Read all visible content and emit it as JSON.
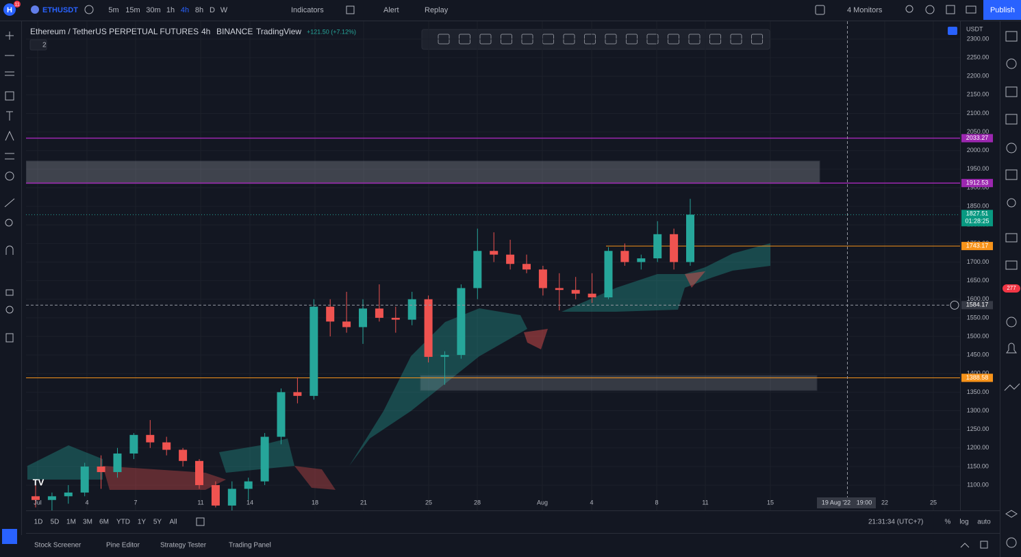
{
  "toolbar": {
    "badge": "11",
    "symbol": "ETHUSDT",
    "intervals": [
      "5m",
      "15m",
      "30m",
      "1h",
      "4h",
      "8h",
      "D",
      "W"
    ],
    "indicators": "Indicators",
    "alert": "Alert",
    "replay": "Replay",
    "monitors": "4 Monitors",
    "publish": "Publish"
  },
  "legend": {
    "symbol_name": "Ethereum / TetherUS PERPETUAL FUTURES",
    "interval": "4h",
    "exchange": "BINANCE",
    "source": "TradingView",
    "change": "+121.50 (+7.12%)",
    "collapsed": "2"
  },
  "currency": "USDT",
  "chart": {
    "ylim": [
      1078,
      2346
    ],
    "yticks": [
      {
        "value": 1100,
        "label": "1100.00"
      },
      {
        "value": 1150,
        "label": "1150.00"
      },
      {
        "value": 1200,
        "label": "1200.00"
      },
      {
        "value": 1250,
        "label": "1250.00"
      },
      {
        "value": 1300,
        "label": "1300.00"
      },
      {
        "value": 1350,
        "label": "1350.00"
      },
      {
        "value": 1400,
        "label": "1400.00"
      },
      {
        "value": 1450,
        "label": "1450.00"
      },
      {
        "value": 1500,
        "label": "1500.00"
      },
      {
        "value": 1550,
        "label": "1550.00"
      },
      {
        "value": 1600,
        "label": "1600.00"
      },
      {
        "value": 1650,
        "label": "1650.00"
      },
      {
        "value": 1700,
        "label": "1700.00"
      },
      {
        "value": 1750,
        "label": "1750.00"
      },
      {
        "value": 1800,
        "label": "1800.00"
      },
      {
        "value": 1850,
        "label": "1850.00"
      },
      {
        "value": 1900,
        "label": "1900.00"
      },
      {
        "value": 1950,
        "label": "1950.00"
      },
      {
        "value": 2000,
        "label": "2000.00"
      },
      {
        "value": 2050,
        "label": "2050.00"
      },
      {
        "value": 2100,
        "label": "2100.00"
      },
      {
        "value": 2150,
        "label": "2150.00"
      },
      {
        "value": 2200,
        "label": "2200.00"
      },
      {
        "value": 2250,
        "label": "2250.00"
      },
      {
        "value": 2300,
        "label": "2300.00"
      }
    ],
    "candles": [
      [
        1070,
        1110,
        1040,
        1060
      ],
      [
        1060,
        1080,
        1030,
        1070
      ],
      [
        1070,
        1100,
        1050,
        1080
      ],
      [
        1080,
        1160,
        1070,
        1150
      ],
      [
        1150,
        1180,
        1090,
        1135
      ],
      [
        1135,
        1200,
        1120,
        1185
      ],
      [
        1185,
        1240,
        1170,
        1235
      ],
      [
        1235,
        1275,
        1200,
        1215
      ],
      [
        1215,
        1230,
        1180,
        1195
      ],
      [
        1195,
        1200,
        1150,
        1165
      ],
      [
        1165,
        1170,
        1090,
        1100
      ],
      [
        1100,
        1110,
        1040,
        1045
      ],
      [
        1045,
        1110,
        1010,
        1090
      ],
      [
        1090,
        1120,
        1060,
        1110
      ],
      [
        1110,
        1240,
        1100,
        1230
      ],
      [
        1230,
        1360,
        1210,
        1350
      ],
      [
        1350,
        1390,
        1320,
        1340
      ],
      [
        1340,
        1600,
        1330,
        1580
      ],
      [
        1580,
        1600,
        1500,
        1540
      ],
      [
        1540,
        1620,
        1510,
        1525
      ],
      [
        1525,
        1600,
        1480,
        1575
      ],
      [
        1575,
        1640,
        1540,
        1550
      ],
      [
        1550,
        1580,
        1510,
        1545
      ],
      [
        1545,
        1620,
        1530,
        1600
      ],
      [
        1600,
        1610,
        1430,
        1445
      ],
      [
        1445,
        1460,
        1370,
        1450
      ],
      [
        1450,
        1640,
        1440,
        1630
      ],
      [
        1630,
        1790,
        1600,
        1730
      ],
      [
        1730,
        1780,
        1700,
        1720
      ],
      [
        1720,
        1760,
        1680,
        1695
      ],
      [
        1695,
        1720,
        1670,
        1680
      ],
      [
        1680,
        1690,
        1610,
        1630
      ],
      [
        1630,
        1670,
        1570,
        1625
      ],
      [
        1625,
        1660,
        1600,
        1615
      ],
      [
        1615,
        1670,
        1590,
        1605
      ],
      [
        1605,
        1740,
        1600,
        1730
      ],
      [
        1730,
        1750,
        1690,
        1700
      ],
      [
        1700,
        1720,
        1680,
        1710
      ],
      [
        1710,
        1810,
        1700,
        1775
      ],
      [
        1775,
        1790,
        1680,
        1700
      ],
      [
        1700,
        1870,
        1690,
        1827.51
      ]
    ],
    "levels": [
      {
        "price": 2033.27,
        "color": "#9c27b0"
      },
      {
        "price": 1912.53,
        "color": "#9c27b0"
      },
      {
        "price": 1743.17,
        "color": "#f7931a"
      },
      {
        "price": 1388.58,
        "color": "#f7931a"
      }
    ],
    "last_price": 1827.51,
    "countdown": "01:28:25",
    "crosshair_price": 1584.17,
    "time_labels": [
      "Jul",
      "4",
      "7",
      "11",
      "14",
      "18",
      "21",
      "25",
      "28",
      "Aug",
      "4",
      "8",
      "11",
      "15",
      "22",
      "25"
    ],
    "crosshair_date": "19 Aug '22",
    "crosshair_time": "19:00"
  },
  "ranges": [
    "1D",
    "5D",
    "1M",
    "3M",
    "6M",
    "YTD",
    "1Y",
    "5Y",
    "All"
  ],
  "clock": "21:31:34 (UTC+7)",
  "scale_options": [
    "%",
    "log",
    "auto"
  ],
  "bottom_tabs": [
    "Stock Screener",
    "Pine Editor",
    "Strategy Tester",
    "Trading Panel"
  ],
  "notification_badge": "277"
}
